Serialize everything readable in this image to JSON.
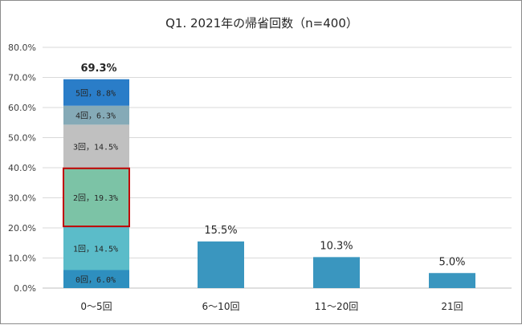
{
  "chart_data": {
    "type": "bar",
    "title": "Q1. 2021年の帰省回数（n=400）",
    "xlabel": "",
    "ylabel": "",
    "ylim": [
      0,
      80
    ],
    "y_ticks": [
      "0.0%",
      "10.0%",
      "20.0%",
      "30.0%",
      "40.0%",
      "50.0%",
      "60.0%",
      "70.0%",
      "80.0%"
    ],
    "grid": true,
    "categories": [
      "0～5回",
      "6～10回",
      "11～20回",
      "21回"
    ],
    "values": [
      69.3,
      15.5,
      10.3,
      5.0
    ],
    "value_labels": [
      "69.3%",
      "15.5%",
      "10.3%",
      "5.0%"
    ],
    "bar_color": "#3a96bf",
    "stacked_breakdown": {
      "category": "0～5回",
      "highlight_index": 2,
      "highlight_color": "#c00000",
      "segments": [
        {
          "label": "0回，6.0%",
          "value": 6.0,
          "color": "#2e8fbf"
        },
        {
          "label": "1回，14.5%",
          "value": 14.5,
          "color": "#5bbcc9"
        },
        {
          "label": "2回，19.3%",
          "value": 19.3,
          "color": "#7cc3a6"
        },
        {
          "label": "3回，14.5%",
          "value": 14.5,
          "color": "#c0c0c0"
        },
        {
          "label": "4回，6.3%",
          "value": 6.3,
          "color": "#85aab7"
        },
        {
          "label": "5回，8.8%",
          "value": 8.8,
          "color": "#2a7dc8"
        }
      ]
    }
  }
}
